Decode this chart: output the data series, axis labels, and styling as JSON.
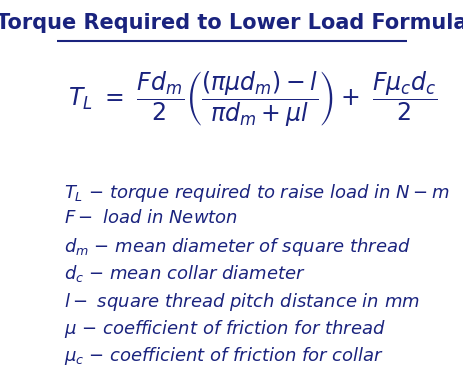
{
  "title": "Torque Required to Lower Load Formula",
  "text_color": "#1a237e",
  "bg_color": "#ffffff",
  "formula_fontsize": 17,
  "var_fontsize": 13,
  "title_fontsize": 15
}
